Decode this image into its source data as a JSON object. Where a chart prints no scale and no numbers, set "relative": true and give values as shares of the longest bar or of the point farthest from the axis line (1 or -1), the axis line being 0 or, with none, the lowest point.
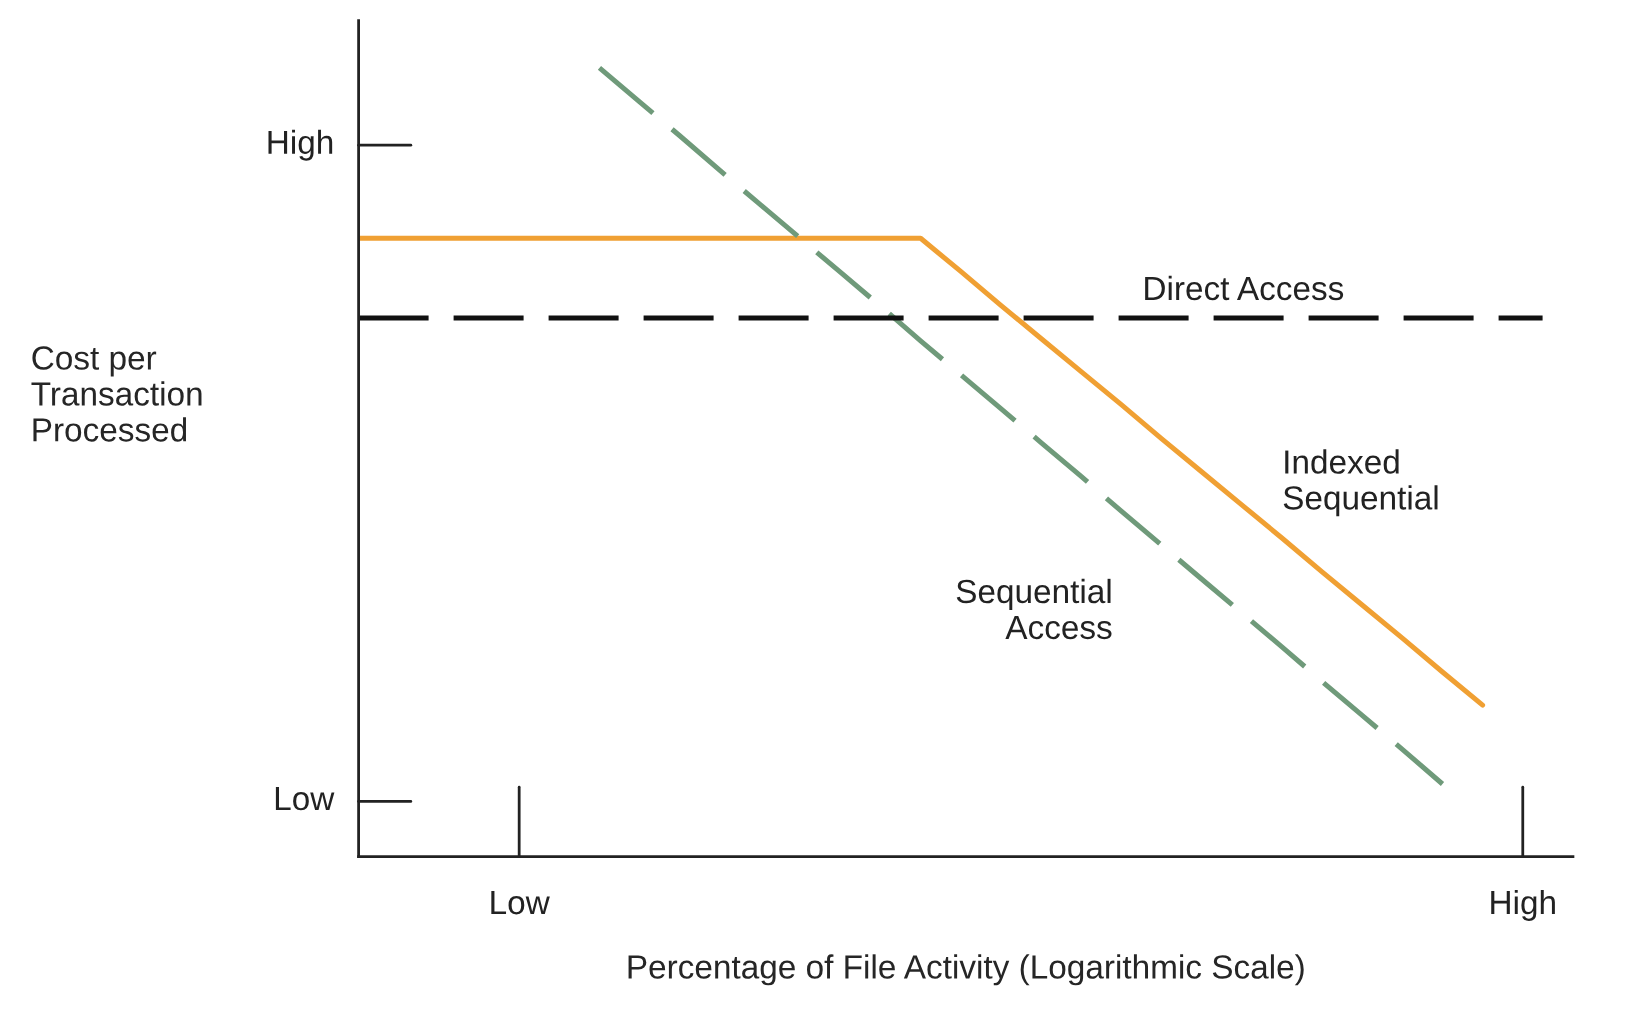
{
  "chart_data": {
    "type": "line",
    "relative": true,
    "xlabel": "Percentage of File Activity (Logarithmic Scale)",
    "ylabel": "Cost per\nTransaction\nProcessed",
    "categories": [
      null,
      null,
      null,
      null,
      "Low",
      null,
      null,
      null,
      null,
      null,
      null,
      null,
      null,
      null,
      null,
      null,
      null,
      null,
      null,
      null,
      null,
      null,
      null,
      null,
      null,
      null,
      null,
      null,
      null,
      "High"
    ],
    "annotations": [
      "High",
      "Low"
    ],
    "legend": false,
    "marker": "none",
    "series": [
      {
        "name": "Indexed\nSequential",
        "color": "#f0a033",
        "line_style": "solid",
        "values": [
          0.784,
          0.784,
          0.784,
          0.784,
          0.784,
          0.784,
          0.784,
          0.784,
          0.784,
          0.784,
          0.784,
          0.784,
          0.784,
          0.784,
          0.784,
          0.742,
          0.699,
          0.657,
          0.615,
          0.573,
          0.53,
          0.488,
          0.446,
          0.404,
          0.361,
          0.319,
          0.277,
          0.234,
          0.192,
          null
        ]
      },
      {
        "name": "Sequential\nAccess",
        "color": "#6f9a7a",
        "line_style": "dashed",
        "values": [
          null,
          null,
          null,
          null,
          null,
          null,
          1.0,
          0.957,
          0.914,
          0.87,
          0.827,
          0.784,
          0.741,
          0.698,
          0.654,
          0.611,
          0.568,
          0.525,
          0.482,
          0.438,
          0.395,
          0.352,
          0.309,
          0.266,
          0.222,
          0.179,
          0.136,
          0.092,
          null,
          null
        ]
      }
    ],
    "ref_lines": [
      {
        "axis": "y",
        "value": 0.683,
        "label": "Direct Access",
        "color": "#111111",
        "line_style": "dashed"
      }
    ]
  }
}
